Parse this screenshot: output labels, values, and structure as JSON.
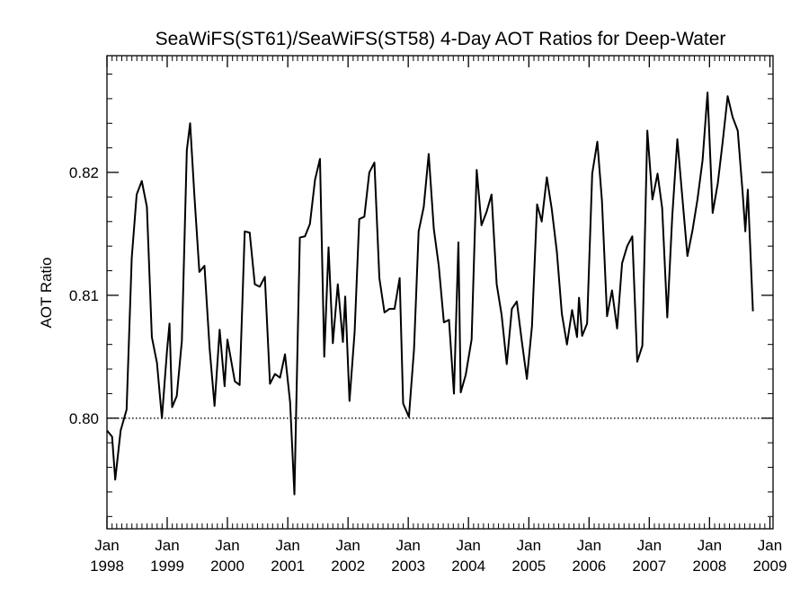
{
  "chart_data": {
    "type": "line",
    "title": "SeaWiFS(ST61)/SeaWiFS(ST58) 4-Day AOT Ratios for Deep-Water",
    "xlabel": "",
    "ylabel": "AOT Ratio",
    "xlim": [
      "1998-01-01",
      "2009-01-20"
    ],
    "ylim": [
      0.791,
      0.8295
    ],
    "y_ticks": [
      "0.80",
      "0.81",
      "0.82"
    ],
    "y_tick_values": [
      0.8,
      0.81,
      0.82
    ],
    "x_ticks": [
      {
        "top": "Jan",
        "bottom": "1998",
        "date": "1998-01-01"
      },
      {
        "top": "Jan",
        "bottom": "1999",
        "date": "1999-01-01"
      },
      {
        "top": "Jan",
        "bottom": "2000",
        "date": "2000-01-01"
      },
      {
        "top": "Jan",
        "bottom": "2001",
        "date": "2001-01-01"
      },
      {
        "top": "Jan",
        "bottom": "2002",
        "date": "2002-01-01"
      },
      {
        "top": "Jan",
        "bottom": "2003",
        "date": "2003-01-01"
      },
      {
        "top": "Jan",
        "bottom": "2004",
        "date": "2004-01-01"
      },
      {
        "top": "Jan",
        "bottom": "2005",
        "date": "2005-01-01"
      },
      {
        "top": "Jan",
        "bottom": "2006",
        "date": "2006-01-01"
      },
      {
        "top": "Jan",
        "bottom": "2007",
        "date": "2007-01-01"
      },
      {
        "top": "Jan",
        "bottom": "2008",
        "date": "2008-01-01"
      },
      {
        "top": "Jan",
        "bottom": "2009",
        "date": "2009-01-01"
      }
    ],
    "reference_line": {
      "y": 0.8,
      "style": "dotted"
    },
    "grid": false,
    "series": [
      {
        "color": "#000000",
        "points": [
          [
            "1998-01-01",
            0.799
          ],
          [
            "1998-02-01",
            0.7985
          ],
          [
            "1998-02-20",
            0.795
          ],
          [
            "1998-03-25",
            0.799
          ],
          [
            "1998-04-30",
            0.8007
          ],
          [
            "1998-05-31",
            0.813
          ],
          [
            "1998-06-30",
            0.8182
          ],
          [
            "1998-07-31",
            0.8193
          ],
          [
            "1998-08-31",
            0.8172
          ],
          [
            "1998-09-30",
            0.8066
          ],
          [
            "1998-10-31",
            0.8045
          ],
          [
            "1998-11-30",
            0.8
          ],
          [
            "1998-12-31",
            0.8055
          ],
          [
            "1999-01-15",
            0.8077
          ],
          [
            "1999-01-31",
            0.8009
          ],
          [
            "1999-02-28",
            0.8018
          ],
          [
            "1999-03-31",
            0.8063
          ],
          [
            "1999-04-30",
            0.8218
          ],
          [
            "1999-05-20",
            0.824
          ],
          [
            "1999-06-15",
            0.8181
          ],
          [
            "1999-07-15",
            0.8119
          ],
          [
            "1999-08-15",
            0.8124
          ],
          [
            "1999-09-15",
            0.8057
          ],
          [
            "1999-10-15",
            0.801
          ],
          [
            "1999-11-15",
            0.8072
          ],
          [
            "1999-12-15",
            0.8026
          ],
          [
            "2000-01-01",
            0.8064
          ],
          [
            "2000-02-15",
            0.803
          ],
          [
            "2000-03-15",
            0.8027
          ],
          [
            "2000-04-15",
            0.8152
          ],
          [
            "2000-05-15",
            0.8151
          ],
          [
            "2000-06-15",
            0.8109
          ],
          [
            "2000-07-15",
            0.8107
          ],
          [
            "2000-08-15",
            0.8115
          ],
          [
            "2000-09-15",
            0.8028
          ],
          [
            "2000-10-15",
            0.8036
          ],
          [
            "2000-11-15",
            0.8033
          ],
          [
            "2000-12-15",
            0.8052
          ],
          [
            "2001-01-15",
            0.8013
          ],
          [
            "2001-02-10",
            0.7938
          ],
          [
            "2001-03-15",
            0.8147
          ],
          [
            "2001-04-15",
            0.8148
          ],
          [
            "2001-05-15",
            0.8158
          ],
          [
            "2001-06-15",
            0.8194
          ],
          [
            "2001-07-15",
            0.8211
          ],
          [
            "2001-08-10",
            0.805
          ],
          [
            "2001-09-05",
            0.8139
          ],
          [
            "2001-10-01",
            0.8061
          ],
          [
            "2001-10-31",
            0.8109
          ],
          [
            "2001-12-01",
            0.8062
          ],
          [
            "2001-12-15",
            0.8099
          ],
          [
            "2002-01-10",
            0.8014
          ],
          [
            "2002-02-10",
            0.807
          ],
          [
            "2002-03-10",
            0.8162
          ],
          [
            "2002-04-10",
            0.8164
          ],
          [
            "2002-05-10",
            0.82
          ],
          [
            "2002-06-10",
            0.8208
          ],
          [
            "2002-07-10",
            0.8114
          ],
          [
            "2002-08-10",
            0.8086
          ],
          [
            "2002-09-10",
            0.8089
          ],
          [
            "2002-10-10",
            0.8089
          ],
          [
            "2002-11-10",
            0.8114
          ],
          [
            "2002-12-01",
            0.8012
          ],
          [
            "2003-01-05",
            0.8001
          ],
          [
            "2003-02-05",
            0.8056
          ],
          [
            "2003-03-05",
            0.8152
          ],
          [
            "2003-04-05",
            0.8172
          ],
          [
            "2003-05-05",
            0.8215
          ],
          [
            "2003-06-05",
            0.8154
          ],
          [
            "2003-07-05",
            0.8124
          ],
          [
            "2003-08-05",
            0.8078
          ],
          [
            "2003-09-05",
            0.808
          ],
          [
            "2003-10-05",
            0.802
          ],
          [
            "2003-11-01",
            0.8143
          ],
          [
            "2003-11-15",
            0.8021
          ],
          [
            "2003-12-15",
            0.8035
          ],
          [
            "2004-01-20",
            0.8064
          ],
          [
            "2004-02-20",
            0.8202
          ],
          [
            "2004-03-20",
            0.8157
          ],
          [
            "2004-04-20",
            0.8168
          ],
          [
            "2004-05-20",
            0.8182
          ],
          [
            "2004-06-20",
            0.8109
          ],
          [
            "2004-07-20",
            0.8084
          ],
          [
            "2004-08-20",
            0.8044
          ],
          [
            "2004-09-20",
            0.8089
          ],
          [
            "2004-10-20",
            0.8095
          ],
          [
            "2004-11-20",
            0.8062
          ],
          [
            "2004-12-20",
            0.8032
          ],
          [
            "2005-01-20",
            0.8075
          ],
          [
            "2005-02-20",
            0.8174
          ],
          [
            "2005-03-20",
            0.816
          ],
          [
            "2005-04-20",
            0.8196
          ],
          [
            "2005-05-20",
            0.817
          ],
          [
            "2005-06-20",
            0.8135
          ],
          [
            "2005-07-20",
            0.8085
          ],
          [
            "2005-08-20",
            0.806
          ],
          [
            "2005-09-20",
            0.8088
          ],
          [
            "2005-10-20",
            0.8066
          ],
          [
            "2005-11-01",
            0.8098
          ],
          [
            "2005-11-20",
            0.8067
          ],
          [
            "2005-12-20",
            0.8077
          ],
          [
            "2006-01-20",
            0.8199
          ],
          [
            "2006-02-20",
            0.8225
          ],
          [
            "2006-03-20",
            0.8177
          ],
          [
            "2006-04-20",
            0.8083
          ],
          [
            "2006-05-20",
            0.8104
          ],
          [
            "2006-06-20",
            0.8073
          ],
          [
            "2006-07-20",
            0.8126
          ],
          [
            "2006-08-20",
            0.814
          ],
          [
            "2006-09-20",
            0.8148
          ],
          [
            "2006-10-20",
            0.8046
          ],
          [
            "2006-11-20",
            0.8059
          ],
          [
            "2006-12-20",
            0.8234
          ],
          [
            "2007-01-20",
            0.8178
          ],
          [
            "2007-02-20",
            0.8199
          ],
          [
            "2007-03-20",
            0.8171
          ],
          [
            "2007-04-20",
            0.8082
          ],
          [
            "2007-05-20",
            0.8164
          ],
          [
            "2007-06-20",
            0.8227
          ],
          [
            "2007-07-20",
            0.818
          ],
          [
            "2007-08-20",
            0.8132
          ],
          [
            "2007-09-20",
            0.8153
          ],
          [
            "2007-10-20",
            0.8178
          ],
          [
            "2007-11-20",
            0.821
          ],
          [
            "2007-12-20",
            0.8265
          ],
          [
            "2008-01-20",
            0.8167
          ],
          [
            "2008-02-20",
            0.8191
          ],
          [
            "2008-03-20",
            0.8224
          ],
          [
            "2008-04-20",
            0.8262
          ],
          [
            "2008-05-20",
            0.8245
          ],
          [
            "2008-06-20",
            0.8234
          ],
          [
            "2008-07-20",
            0.8183
          ],
          [
            "2008-08-05",
            0.8152
          ],
          [
            "2008-08-20",
            0.8186
          ],
          [
            "2008-09-20",
            0.8087
          ]
        ]
      }
    ]
  }
}
